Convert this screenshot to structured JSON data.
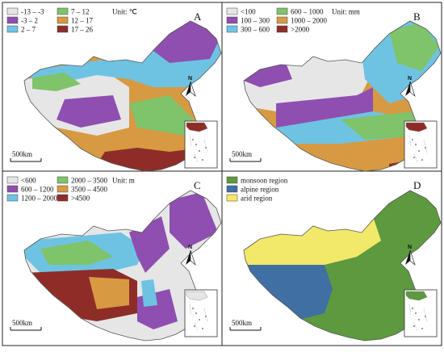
{
  "panels": [
    {
      "letter": "A",
      "unit": "Unit: ℃",
      "legend": [
        {
          "label": "-13 – -3",
          "color": "#e6e6e6"
        },
        {
          "label": "-3 – 2",
          "color": "#8e4fb0"
        },
        {
          "label": "2 – 7",
          "color": "#6ec3e3"
        },
        {
          "label": "7 – 12",
          "color": "#7fc36a"
        },
        {
          "label": "12 – 17",
          "color": "#d79a42"
        },
        {
          "label": "17 – 26",
          "color": "#8e2d28"
        }
      ],
      "scale": "500km",
      "north": "N"
    },
    {
      "letter": "B",
      "unit": "Unit: mm",
      "legend": [
        {
          "label": "<100",
          "color": "#e6e6e6"
        },
        {
          "label": "100 – 300",
          "color": "#8e4fb0"
        },
        {
          "label": "300 – 600",
          "color": "#6ec3e3"
        },
        {
          "label": "600 – 1000",
          "color": "#7fc36a"
        },
        {
          "label": "1000 – 2000",
          "color": "#d79a42"
        },
        {
          "label": ">2000",
          "color": "#8e2d28"
        }
      ],
      "scale": "500km",
      "north": "N"
    },
    {
      "letter": "C",
      "unit": "Unit: m",
      "legend": [
        {
          "label": "<600",
          "color": "#e6e6e6"
        },
        {
          "label": "600 – 1200",
          "color": "#8e4fb0"
        },
        {
          "label": "1200 – 2000",
          "color": "#6ec3e3"
        },
        {
          "label": "2000 – 3500",
          "color": "#7fc36a"
        },
        {
          "label": "3500 – 4500",
          "color": "#d79a42"
        },
        {
          "label": ">4500",
          "color": "#8e2d28"
        }
      ],
      "scale": "500km",
      "north": "N"
    },
    {
      "letter": "D",
      "unit": "",
      "legend": [
        {
          "label": "monsoon region",
          "color": "#5d9a3f"
        },
        {
          "label": "alpine region",
          "color": "#3f6fa3"
        },
        {
          "label": "arid region",
          "color": "#f2e86a"
        }
      ],
      "scale": "500km",
      "north": "N"
    }
  ]
}
